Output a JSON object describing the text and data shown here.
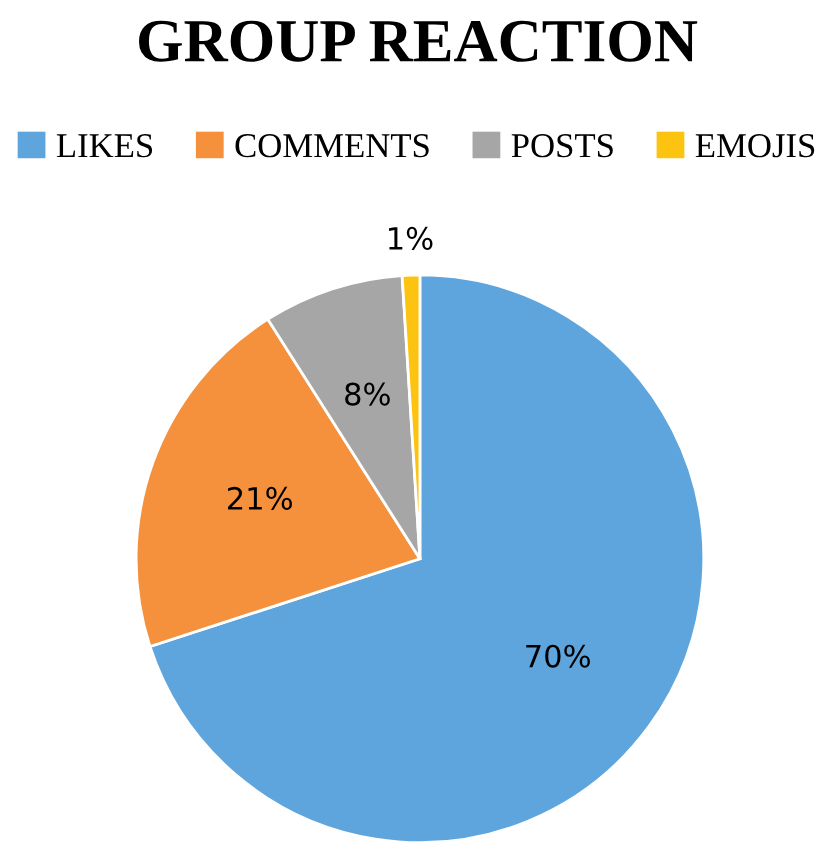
{
  "chart_data": {
    "type": "pie",
    "title": "GROUP REACTION",
    "categories": [
      "LIKES",
      "COMMENTS",
      "POSTS",
      "EMOJIS"
    ],
    "values": [
      70,
      21,
      8,
      1
    ],
    "colors": [
      "#5fa5dd",
      "#f5913d",
      "#a6a6a6",
      "#fdc311"
    ],
    "value_labels": [
      "70%",
      "21%",
      "8%",
      "1%"
    ],
    "legend": "top"
  }
}
